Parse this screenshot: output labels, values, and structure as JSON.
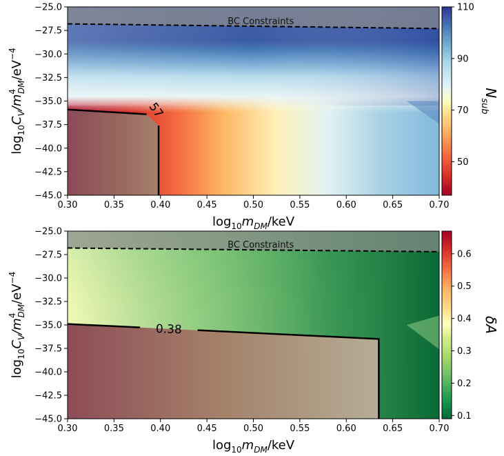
{
  "chart_data": [
    {
      "type": "heatmap",
      "x_range": [
        0.3,
        0.7
      ],
      "y_range": [
        -45.0,
        -25.0
      ],
      "x_ticks": [
        "0.30",
        "0.35",
        "0.40",
        "0.45",
        "0.50",
        "0.55",
        "0.60",
        "0.65",
        "0.70"
      ],
      "y_ticks": [
        "-25.0",
        "-27.5",
        "-30.0",
        "-32.5",
        "-35.0",
        "-37.5",
        "-40.0",
        "-42.5",
        "-45.0"
      ],
      "xlabel_base": "log",
      "xlabel_sub": "10",
      "xlabel_var": "m",
      "xlabel_var_sub": "DM",
      "xlabel_unit": "/keV",
      "ylabel_base": "log",
      "ylabel_sub": "10",
      "ylabel_c": "C",
      "ylabel_c_sub": "V",
      "ylabel_m": "/m",
      "ylabel_m_sup": "4",
      "ylabel_m_sub": "DM",
      "ylabel_unit": "/eV",
      "ylabel_unit_sup": "−4",
      "colorbar_label_base": "N",
      "colorbar_label_sub": "sub",
      "colorbar_range": [
        37,
        110
      ],
      "colorbar_ticks": [
        "110",
        "90",
        "70",
        "50"
      ],
      "colorbar_tick_values": [
        110,
        90,
        70,
        50
      ],
      "colormap": "RdYlBu",
      "annotation": "BC Constraints",
      "bc_boundary": [
        {
          "x": 0.3,
          "y": -26.8
        },
        {
          "x": 0.7,
          "y": -27.3
        }
      ],
      "contour_label": "57",
      "contour_value": 57,
      "contour_path": [
        {
          "x": 0.3,
          "y": -35.9
        },
        {
          "x": 0.385,
          "y": -36.4
        },
        {
          "x": 0.398,
          "y": -37.6
        },
        {
          "x": 0.398,
          "y": -45.0
        }
      ],
      "excluded_region": "lower-left"
    },
    {
      "type": "heatmap",
      "x_range": [
        0.3,
        0.7
      ],
      "y_range": [
        -45.0,
        -25.0
      ],
      "x_ticks": [
        "0.30",
        "0.35",
        "0.40",
        "0.45",
        "0.50",
        "0.55",
        "0.60",
        "0.65",
        "0.70"
      ],
      "y_ticks": [
        "-25.0",
        "-27.5",
        "-30.0",
        "-32.5",
        "-35.0",
        "-37.5",
        "-40.0",
        "-42.5",
        "-45.0"
      ],
      "xlabel_base": "log",
      "xlabel_sub": "10",
      "xlabel_var": "m",
      "xlabel_var_sub": "DM",
      "xlabel_unit": "/keV",
      "ylabel_base": "log",
      "ylabel_sub": "10",
      "ylabel_c": "C",
      "ylabel_c_sub": "V",
      "ylabel_m": "/m",
      "ylabel_m_sup": "4",
      "ylabel_m_sub": "DM",
      "ylabel_unit": "/eV",
      "ylabel_unit_sup": "−4",
      "colorbar_label": "δA",
      "colorbar_range": [
        0.09,
        0.67
      ],
      "colorbar_ticks": [
        "0.6",
        "0.5",
        "0.4",
        "0.3",
        "0.2",
        "0.1"
      ],
      "colorbar_tick_values": [
        0.6,
        0.5,
        0.4,
        0.3,
        0.2,
        0.1
      ],
      "colormap": "RdYlGn_r",
      "annotation": "BC Constraints",
      "bc_boundary": [
        {
          "x": 0.3,
          "y": -26.8
        },
        {
          "x": 0.7,
          "y": -27.2
        }
      ],
      "contour_label": "0.38",
      "contour_value": 0.38,
      "contour_path": [
        {
          "x": 0.3,
          "y": -34.9
        },
        {
          "x": 0.635,
          "y": -36.5
        },
        {
          "x": 0.635,
          "y": -45.0
        }
      ],
      "excluded_region": "lower-left"
    }
  ]
}
